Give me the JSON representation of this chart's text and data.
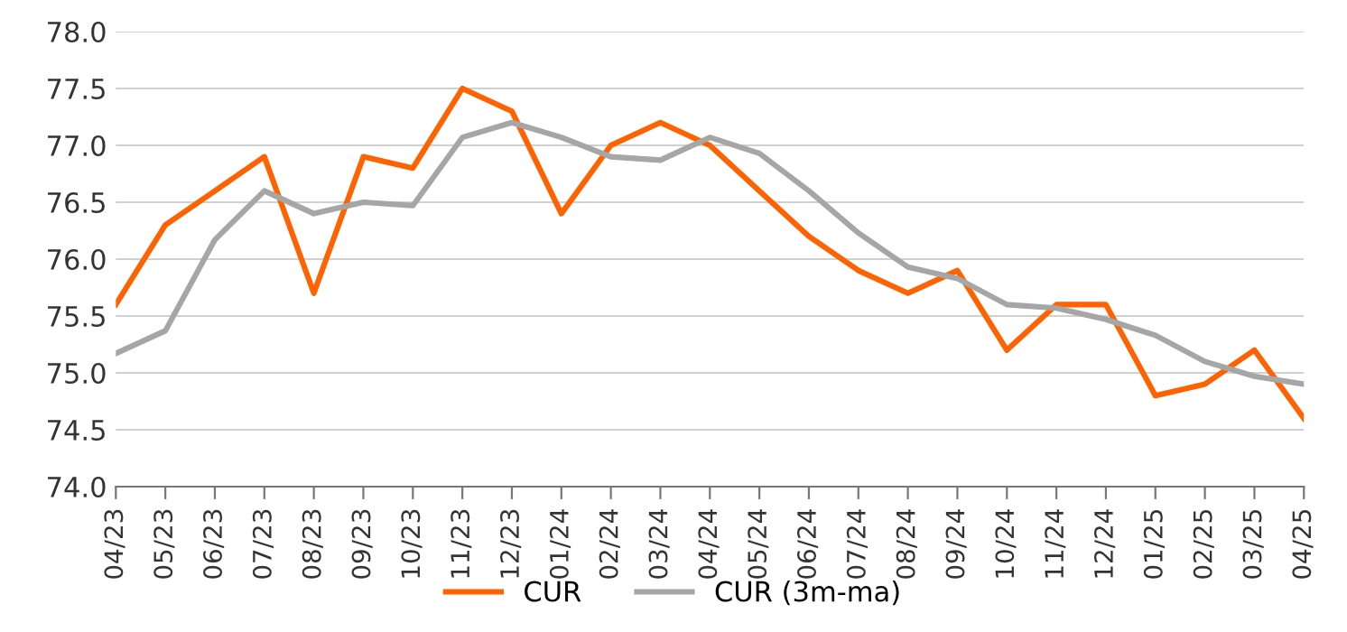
{
  "chart_data": {
    "type": "line",
    "categories": [
      "04/23",
      "05/23",
      "06/23",
      "07/23",
      "08/23",
      "09/23",
      "10/23",
      "11/23",
      "12/23",
      "01/24",
      "02/24",
      "03/24",
      "04/24",
      "05/24",
      "06/24",
      "07/24",
      "08/24",
      "09/24",
      "10/24",
      "11/24",
      "12/24",
      "01/25",
      "02/25",
      "03/25",
      "04/25"
    ],
    "series": [
      {
        "name": "CUR",
        "color": "#ff6200",
        "values": [
          75.6,
          76.3,
          76.6,
          76.9,
          75.7,
          76.9,
          76.8,
          77.5,
          77.3,
          76.4,
          77.0,
          77.2,
          77.0,
          76.6,
          76.2,
          75.9,
          75.7,
          75.9,
          75.2,
          75.6,
          75.6,
          74.8,
          74.9,
          75.2,
          74.6
        ]
      },
      {
        "name": "CUR (3m-ma)",
        "color": "#a6a6a6",
        "values": [
          75.17,
          75.37,
          76.17,
          76.6,
          76.4,
          76.5,
          76.47,
          77.07,
          77.2,
          77.07,
          76.9,
          76.87,
          77.07,
          76.93,
          76.6,
          76.23,
          75.93,
          75.83,
          75.6,
          75.57,
          75.47,
          75.33,
          75.1,
          74.97,
          74.9
        ]
      }
    ],
    "ylim": [
      74.0,
      78.0
    ],
    "yticks": [
      {
        "value": 74.0,
        "label": "74.0"
      },
      {
        "value": 74.5,
        "label": "74.5"
      },
      {
        "value": 75.0,
        "label": "75.0"
      },
      {
        "value": 75.5,
        "label": "75.5"
      },
      {
        "value": 76.0,
        "label": "76.0"
      },
      {
        "value": 76.5,
        "label": "76.5"
      },
      {
        "value": 77.0,
        "label": "77.0"
      },
      {
        "value": 77.5,
        "label": "77.5"
      },
      {
        "value": 78.0,
        "label": "78.0"
      }
    ],
    "grid": "y",
    "legend": "bottom",
    "marker": "none",
    "line_style": "solid"
  }
}
